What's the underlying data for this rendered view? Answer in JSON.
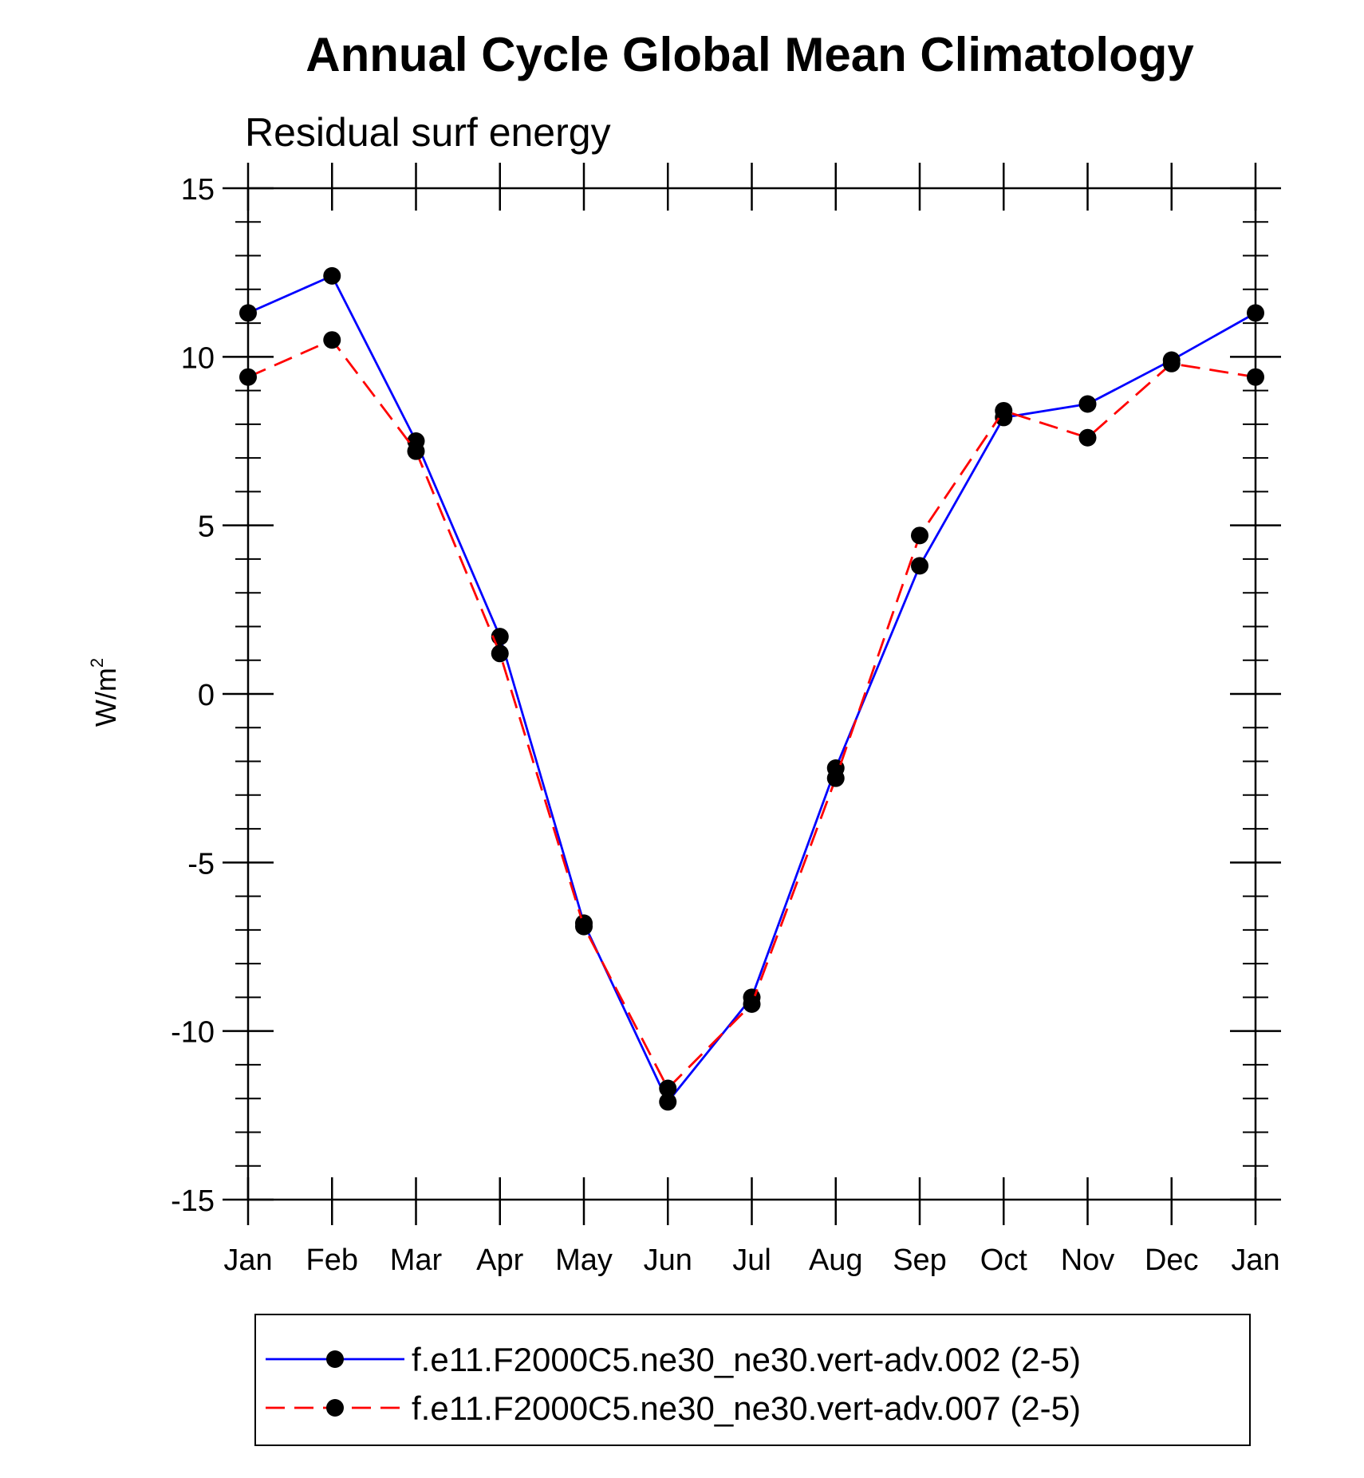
{
  "chart_data": {
    "type": "line",
    "title": "Annual Cycle Global Mean Climatology",
    "subtitle": "Residual surf energy",
    "ylabel_base": "W/m",
    "ylabel_sup": "2",
    "categories": [
      "Jan",
      "Feb",
      "Mar",
      "Apr",
      "May",
      "Jun",
      "Jul",
      "Aug",
      "Sep",
      "Oct",
      "Nov",
      "Dec",
      "Jan"
    ],
    "ylim": [
      -15,
      15
    ],
    "yticks": [
      15,
      10,
      5,
      0,
      -5,
      -10,
      -15
    ],
    "ytick_labels": [
      "15",
      "10",
      "5",
      "0",
      "-5",
      "-10",
      "-15"
    ],
    "grid": false,
    "legend_position": "bottom",
    "series": [
      {
        "name": "f.e11.F2000C5.ne30_ne30.vert-adv.002 (2-5)",
        "color": "#0000ff",
        "dash": "solid",
        "marker": "filled-circle",
        "values": [
          11.3,
          12.4,
          7.5,
          1.7,
          -6.8,
          -12.1,
          -9.0,
          -2.2,
          3.8,
          8.2,
          8.6,
          9.9,
          11.3
        ]
      },
      {
        "name": "f.e11.F2000C5.ne30_ne30.vert-adv.007 (2-5)",
        "color": "#ff0000",
        "dash": "dashed",
        "marker": "filled-circle",
        "values": [
          9.4,
          10.5,
          7.2,
          1.2,
          -6.9,
          -11.7,
          -9.2,
          -2.5,
          4.7,
          8.4,
          7.6,
          9.8,
          9.4
        ]
      }
    ]
  }
}
